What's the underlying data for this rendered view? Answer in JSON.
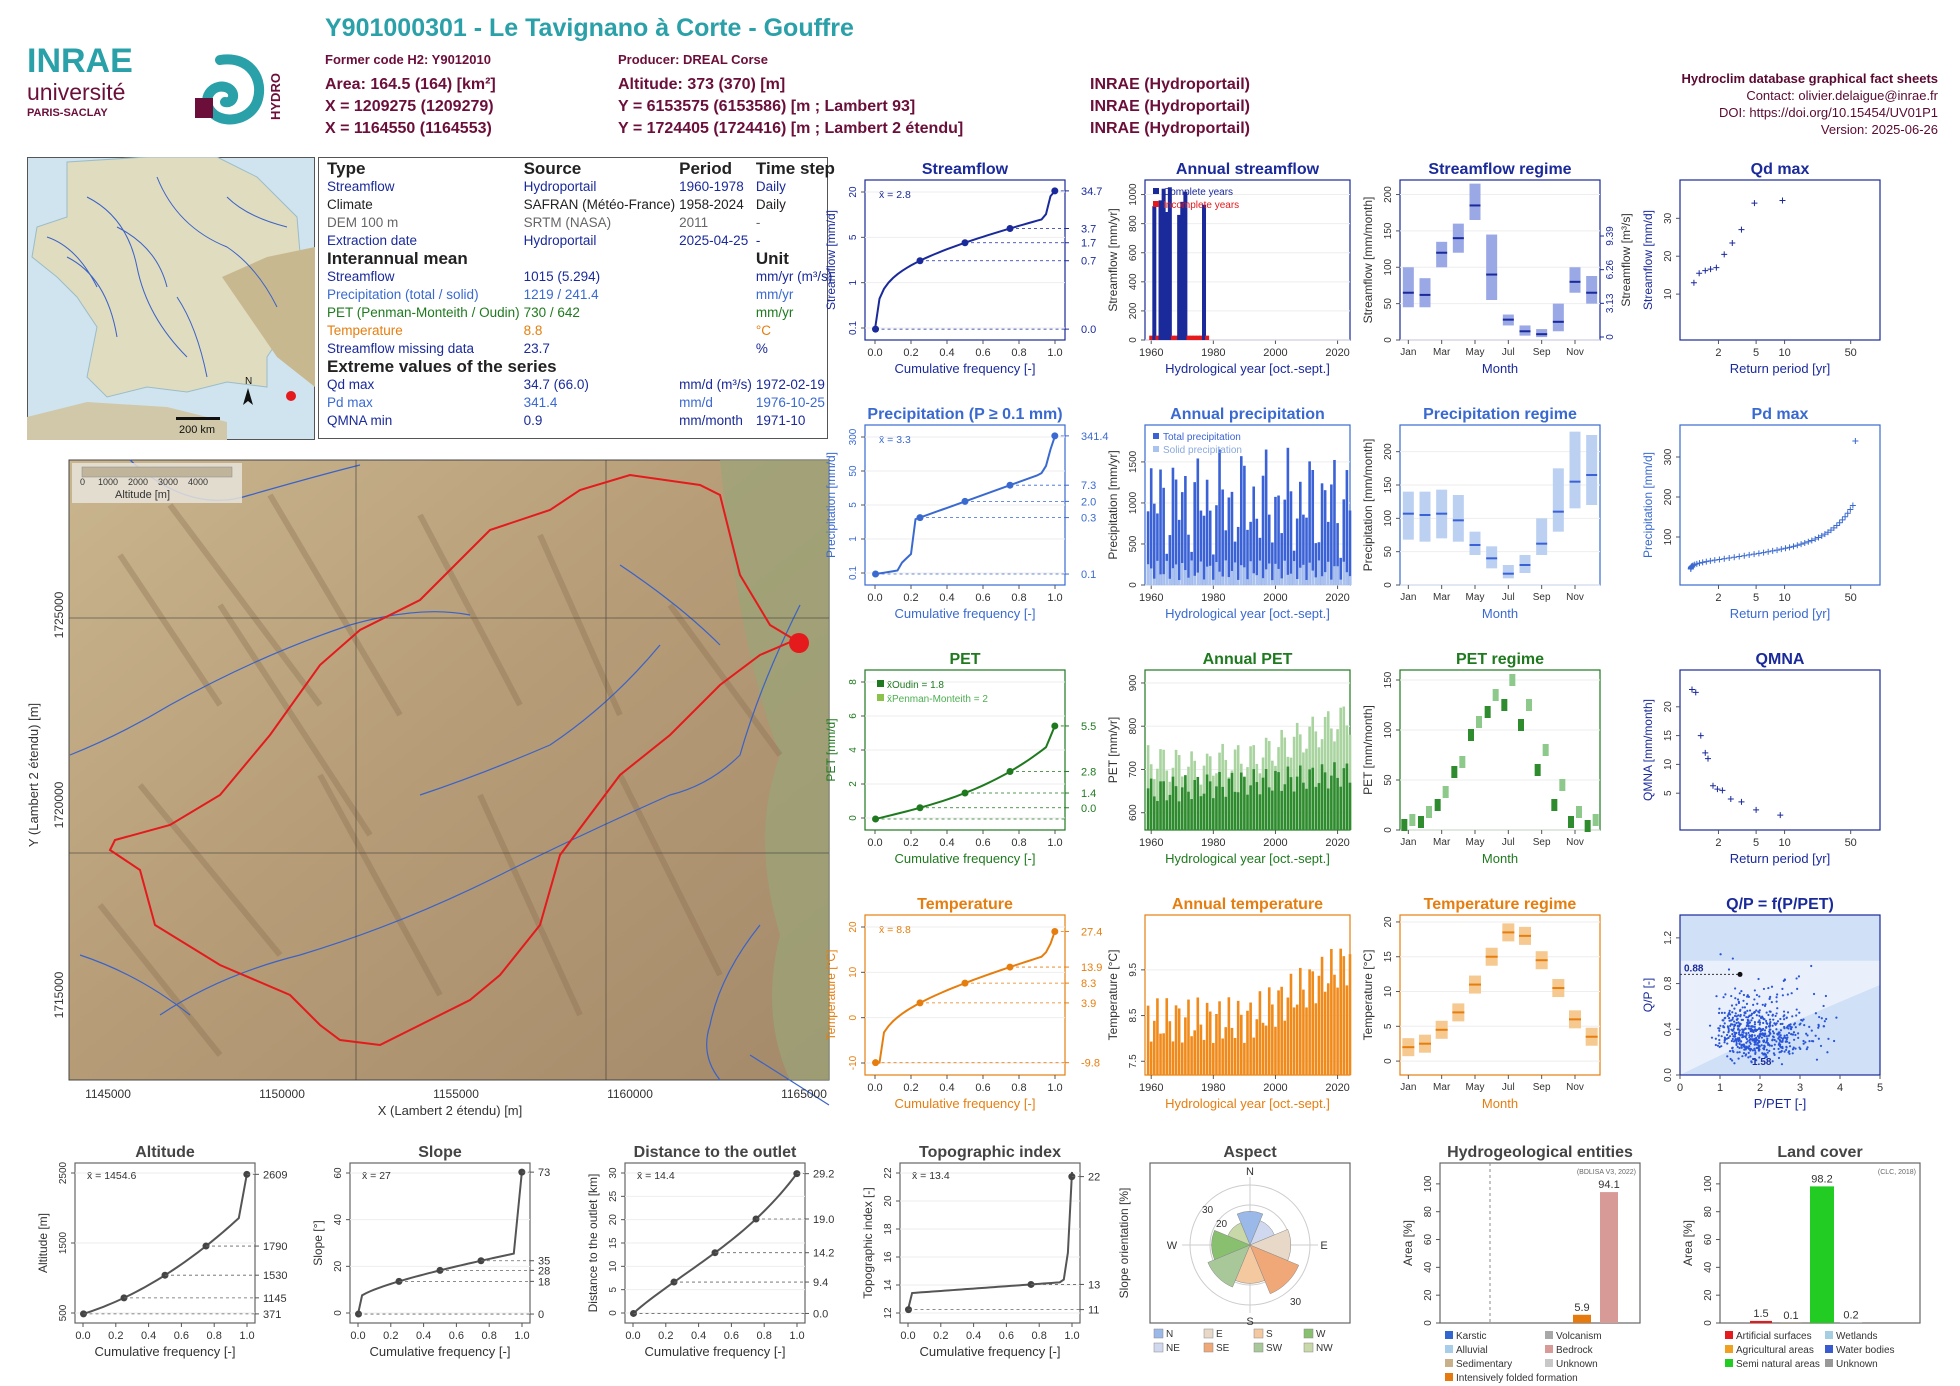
{
  "header": {
    "title": "Y901000301 - Le Tavignano à Corte - Gouffre",
    "former_code": "Former code H2: Y9012010",
    "producer": "Producer: DREAL Corse",
    "area": "Area: 164.5 (164) [km²]",
    "altitude": "Altitude: 373 (370) [m]",
    "x93": "X = 1209275 (1209279)",
    "y93": "Y = 6153575 (6153586) [m ; Lambert 93]",
    "x2e": "X = 1164550 (1164553)",
    "y2e": "Y = 1724405 (1724416) [m ; Lambert 2 étendu]",
    "src1": "INRAE (Hydroportail)",
    "src2": "INRAE (Hydroportail)",
    "src3": "INRAE (Hydroportail)",
    "db": "Hydroclim database graphical fact sheets",
    "contact": "Contact: olivier.delaigue@inrae.fr",
    "doi": "DOI: https://doi.org/10.15454/UV01P1",
    "version": "Version: 2025-06-26"
  },
  "logo": {
    "inrae": "INRAE",
    "univ": "université",
    "paris": "PARIS-SACLAY",
    "hydro": "HYDRO"
  },
  "info": {
    "h_type": "Type",
    "h_source": "Source",
    "h_period": "Period",
    "h_step": "Time step",
    "rows": [
      {
        "type": "Streamflow",
        "source": "Hydroportail",
        "period": "1960-1978",
        "step": "Daily",
        "color": "#1a2a9a"
      },
      {
        "type": "Climate",
        "source": "SAFRAN (Météo-France)",
        "period": "1958-2024",
        "step": "Daily",
        "color": "#222222"
      },
      {
        "type": "DEM 100 m",
        "source": "SRTM (NASA)",
        "period": "2011",
        "step": "-",
        "color": "#666666"
      },
      {
        "type": "Extraction date",
        "source": "Hydroportail",
        "period": "2025-04-25",
        "step": "-",
        "color": "#1a2a9a"
      }
    ],
    "h_mean": "Interannual mean",
    "h_unit": "Unit",
    "means": [
      {
        "label": "Streamflow",
        "value": "1015 (5.294)",
        "unit": "mm/yr (m³/s)",
        "color": "#1a2a9a"
      },
      {
        "label": "Precipitation (total / solid)",
        "value": "1219 / 241.4",
        "unit": "mm/yr",
        "color": "#3a6ad0"
      },
      {
        "label": "PET (Penman-Monteith / Oudin)",
        "value": "730 / 642",
        "unit": "mm/yr",
        "color": "#1f7a1f"
      },
      {
        "label": "Temperature",
        "value": "8.8",
        "unit": "°C",
        "color": "#e67e0f"
      },
      {
        "label": "Streamflow missing data",
        "value": "23.7",
        "unit": "%",
        "color": "#1a2a9a"
      }
    ],
    "h_ext": "Extreme values of the series",
    "extremes": [
      {
        "label": "Qd max",
        "value": "34.7 (66.0)",
        "unit": "mm/d (m³/s)",
        "date": "1972-02-19",
        "color": "#1a2a9a"
      },
      {
        "label": "Pd max",
        "value": "341.4",
        "unit": "mm/d",
        "date": "1976-10-25",
        "color": "#3a6ad0"
      },
      {
        "label": "QMNA min",
        "value": "0.9",
        "unit": "mm/month",
        "date": "1971-10",
        "color": "#1a2a9a"
      }
    ]
  },
  "minimap": {
    "scale": "200 km",
    "north": "N"
  },
  "map": {
    "legend_title": "Altitude [m]",
    "legend_ticks": [
      "0",
      "1000",
      "2000",
      "3000",
      "4000"
    ],
    "xlabel": "X (Lambert 2 étendu) [m]",
    "ylabel": "Y (Lambert 2 étendu) [m]",
    "xticks": [
      "1145000",
      "1150000",
      "1155000",
      "1160000",
      "1165000"
    ],
    "yticks": [
      "1715000",
      "1720000",
      "1725000"
    ]
  },
  "panel_titles": {
    "streamflow": "Streamflow",
    "annual_streamflow": "Annual streamflow",
    "streamflow_regime": "Streamflow regime",
    "qd_max": "Qd max",
    "precip": "Precipitation (P ≥ 0.1 mm)",
    "annual_precip": "Annual precipitation",
    "precip_regime": "Precipitation regime",
    "pd_max": "Pd max",
    "pet": "PET",
    "annual_pet": "Annual PET",
    "pet_regime": "PET regime",
    "qmna": "QMNA",
    "temp": "Temperature",
    "annual_temp": "Annual temperature",
    "temp_regime": "Temperature regime",
    "qp": "Q/P = f(P/PET)",
    "altitude": "Altitude",
    "slope": "Slope",
    "distance": "Distance to the outlet",
    "topo": "Topographic index",
    "aspect": "Aspect",
    "hydrogeo": "Hydrogeological entities",
    "landcover": "Land cover"
  },
  "axis_labels": {
    "cumfreq": "Cumulative frequency [-]",
    "hydro_year": "Hydrological year [oct.-sept.]",
    "month": "Month",
    "return_period": "Return period [yr]",
    "streamflow_mmd": "Streamflow [mm/d]",
    "streamflow_mmyr": "Streamflow [mm/yr]",
    "streamflow_mmmonth": "Streamflow [mm/month]",
    "streamflow_m3s": "Streamflow [m³/s]",
    "precip_mmd": "Precipitation [mm/d]",
    "precip_mmyr": "Precipitation [mm/yr]",
    "precip_mmmonth": "Precipitation [mm/month]",
    "pet_mmd": "PET [mm/d]",
    "pet_mmyr": "PET [mm/yr]",
    "pet_mmmonth": "PET [mm/month]",
    "qmna": "QMNA [mm/month]",
    "temp": "Temperature [°C]",
    "qp": "Q/P [-]",
    "ppet": "P/PET [-]",
    "altitude": "Altitude [m]",
    "slope": "Slope [°]",
    "distance": "Distance to the outlet [km]",
    "topo": "Topographic index [-]",
    "aspect": "Slope orientation [%]",
    "area": "Area [%]"
  },
  "months": [
    "Jan",
    "Mar",
    "May",
    "Jul",
    "Sep",
    "Nov"
  ],
  "chart_data": [
    {
      "id": "streamflow",
      "type": "line",
      "xlim": [
        0,
        1
      ],
      "ylog": true,
      "yticks": [
        "0.1",
        "1",
        "5",
        "20"
      ],
      "mean_label": "x̄ = 2.8",
      "right_labels": [
        "34.7",
        "3.7",
        "1.7",
        "0.7",
        "0.0"
      ],
      "color": "#1a2a9a"
    },
    {
      "id": "annual_streamflow",
      "type": "bar",
      "xlim": [
        1958,
        2024
      ],
      "ylim": [
        0,
        1100
      ],
      "yticks": [
        0,
        200,
        400,
        600,
        800,
        1000
      ],
      "xticks": [
        1960,
        1980,
        2000,
        2020
      ],
      "x": [
        1960,
        1961,
        1962,
        1963,
        1964,
        1965,
        1966,
        1967,
        1968,
        1969,
        1970,
        1971,
        1972,
        1973,
        1974,
        1975,
        1976,
        1977,
        1978
      ],
      "complete": [
        0,
        1,
        0,
        1,
        1,
        1,
        1,
        0,
        0,
        1,
        1,
        1,
        0,
        0,
        0,
        0,
        0,
        1,
        0
      ],
      "values": [
        30,
        920,
        30,
        960,
        1040,
        880,
        1050,
        30,
        30,
        860,
        950,
        1020,
        30,
        30,
        30,
        30,
        30,
        930,
        30
      ],
      "legend": [
        "Complete years",
        "Incomplete years"
      ]
    },
    {
      "id": "streamflow_regime",
      "type": "bar",
      "ylim": [
        0,
        220
      ],
      "yticks": [
        0,
        50,
        100,
        150,
        200
      ],
      "right_labels": [
        "0",
        "3.13",
        "6.26",
        "9.39"
      ],
      "median": [
        65,
        62,
        120,
        140,
        185,
        90,
        28,
        12,
        8,
        25,
        80,
        65
      ],
      "q_low": [
        45,
        45,
        100,
        120,
        165,
        55,
        20,
        6,
        4,
        12,
        65,
        50
      ],
      "q_high": [
        100,
        85,
        135,
        160,
        215,
        145,
        35,
        20,
        15,
        50,
        100,
        88
      ]
    },
    {
      "id": "qd_max",
      "type": "scatter",
      "xlog": true,
      "xticks": [
        2,
        5,
        10,
        50
      ],
      "yticks": [
        10,
        20,
        30
      ],
      "x": [
        1.1,
        1.25,
        1.45,
        1.65,
        1.9,
        2.3,
        2.8,
        3.5,
        4.8,
        9.5
      ],
      "y": [
        13,
        15.5,
        16.2,
        16.6,
        17,
        20.5,
        23.5,
        27,
        34,
        34.7
      ]
    },
    {
      "id": "precip",
      "type": "line",
      "xlim": [
        0,
        1
      ],
      "ylog": true,
      "yticks": [
        "0.1",
        "1",
        "5",
        "50",
        "300"
      ],
      "mean_label": "x̄ = 3.3",
      "right_labels": [
        "341.4",
        "7.3",
        "2.0",
        "0.3",
        "0.1"
      ],
      "color": "#3a6ad0"
    },
    {
      "id": "annual_precip",
      "type": "bar",
      "xlim": [
        1958,
        2024
      ],
      "ylim": [
        0,
        1950
      ],
      "yticks": [
        0,
        500,
        1000,
        1500
      ],
      "xticks": [
        1960,
        1980,
        2000,
        2020
      ],
      "legend": [
        "Total precipitation",
        "Solid precipitation"
      ]
    },
    {
      "id": "precip_regime",
      "type": "bar",
      "ylim": [
        0,
        240
      ],
      "yticks": [
        0,
        50,
        100,
        150,
        200
      ],
      "median": [
        107,
        105,
        107,
        97,
        60,
        40,
        17,
        30,
        62,
        110,
        155,
        165
      ],
      "q_low": [
        68,
        65,
        70,
        65,
        45,
        25,
        10,
        18,
        45,
        80,
        115,
        120
      ],
      "q_high": [
        140,
        140,
        143,
        135,
        80,
        58,
        30,
        45,
        100,
        175,
        230,
        225
      ]
    },
    {
      "id": "pd_max",
      "type": "scatter",
      "xlog": true,
      "xticks": [
        2,
        5,
        10,
        50
      ],
      "yticks": [
        100,
        200,
        300
      ]
    },
    {
      "id": "pet",
      "type": "line",
      "xlim": [
        0,
        1
      ],
      "yticks": [
        0,
        2,
        4,
        6,
        8
      ],
      "mean_label": [
        "x̄Oudin = 1.8",
        "x̄Penman-Monteith = 2"
      ],
      "right_labels": [
        "5.5",
        "2.8",
        "1.4",
        "0.0"
      ],
      "color": "#1f7a1f"
    },
    {
      "id": "annual_pet",
      "type": "bar",
      "xlim": [
        1958,
        2024
      ],
      "ylim": [
        560,
        930
      ],
      "yticks": [
        600,
        700,
        800,
        900
      ],
      "xticks": [
        1960,
        1980,
        2000,
        2020
      ]
    },
    {
      "id": "pet_regime",
      "type": "bar",
      "ylim": [
        0,
        160
      ],
      "yticks": [
        0,
        50,
        100,
        150
      ],
      "oudin": [
        5,
        8,
        25,
        58,
        95,
        118,
        125,
        105,
        60,
        25,
        8,
        4
      ],
      "pm": [
        10,
        18,
        38,
        68,
        108,
        135,
        150,
        125,
        80,
        45,
        18,
        10
      ]
    },
    {
      "id": "qmna",
      "type": "scatter",
      "xlog": true,
      "xticks": [
        2,
        5,
        10,
        50
      ],
      "yticks": [
        5,
        10,
        15,
        20
      ],
      "x": [
        1.05,
        1.15,
        1.3,
        1.45,
        1.55,
        1.75,
        1.95,
        2.2,
        2.7,
        3.5,
        5,
        9
      ],
      "y": [
        23,
        22.5,
        15,
        12,
        11,
        6.3,
        5.7,
        5.5,
        4,
        3.5,
        2.1,
        1.2
      ]
    },
    {
      "id": "temp",
      "type": "line",
      "xlim": [
        0,
        1
      ],
      "yticks": [
        -10,
        0,
        10,
        20
      ],
      "mean_label": "x̄ = 8.8",
      "right_labels": [
        "27.4",
        "13.9",
        "8.3",
        "3.9",
        "-9.8"
      ],
      "color": "#e67e0f"
    },
    {
      "id": "annual_temp",
      "type": "bar",
      "xlim": [
        1958,
        2024
      ],
      "ylim": [
        7.2,
        10.7
      ],
      "yticks": [
        7.5,
        8.5,
        9.5
      ],
      "xticks": [
        1960,
        1980,
        2000,
        2020
      ]
    },
    {
      "id": "temp_regime",
      "type": "bar",
      "ylim": [
        -2,
        21
      ],
      "yticks": [
        0,
        5,
        10,
        15,
        20
      ],
      "median": [
        2,
        2.5,
        4.5,
        7,
        11,
        15,
        18.5,
        18,
        14.5,
        10.5,
        6,
        3.5
      ]
    },
    {
      "id": "qp",
      "type": "scatter",
      "xlim": [
        0,
        5
      ],
      "ylim": [
        0,
        1.4
      ],
      "xticks": [
        0,
        1,
        2,
        3,
        4,
        5
      ],
      "yticks": [
        0.0,
        0.4,
        0.8,
        1.2
      ],
      "labels": [
        "0.88",
        "1.58"
      ]
    },
    {
      "id": "altitude",
      "type": "line",
      "xlim": [
        0,
        1
      ],
      "yticks": [
        500,
        1500,
        2500
      ],
      "mean_label": "x̄ = 1454.6",
      "right_labels": [
        "2609",
        "1790",
        "1530",
        "1145",
        "371"
      ]
    },
    {
      "id": "slope",
      "type": "line",
      "xlim": [
        0,
        1
      ],
      "yticks": [
        0,
        20,
        40,
        60
      ],
      "mean_label": "x̄ = 27",
      "right_labels": [
        "73",
        "35",
        "28",
        "18",
        "0"
      ]
    },
    {
      "id": "distance",
      "type": "line",
      "xlim": [
        0,
        1
      ],
      "yticks": [
        0,
        5,
        10,
        15,
        20,
        25,
        30
      ],
      "mean_label": "x̄ = 14.4",
      "right_labels": [
        "29.2",
        "19.0",
        "14.2",
        "9.4",
        "0.0"
      ]
    },
    {
      "id": "topo",
      "type": "line",
      "xlim": [
        0,
        1
      ],
      "yticks": [
        12,
        14,
        16,
        18,
        20,
        22
      ],
      "mean_label": "x̄ = 13.4",
      "right_labels": [
        "22",
        "13",
        "11"
      ]
    },
    {
      "id": "aspect",
      "type": "rose",
      "directions": [
        "N",
        "NE",
        "E",
        "SE",
        "S",
        "SW",
        "W",
        "NW"
      ],
      "rings": [
        "20",
        "30"
      ]
    },
    {
      "id": "hydrogeo",
      "type": "bar",
      "ylim": [
        0,
        100
      ],
      "yticks": [
        0,
        20,
        40,
        60,
        80,
        100
      ],
      "note": "(BDLISA V3, 2022)",
      "categories": [
        "Intensively folded formation",
        "Bedrock"
      ],
      "values": [
        5.9,
        94.1
      ],
      "legend": [
        "Karstic",
        "Volcanism",
        "Alluvial",
        "Bedrock",
        "Sedimentary",
        "Unknown",
        "Intensively folded formation"
      ],
      "legend_colors": [
        "#3066d0",
        "#a8a8a8",
        "#a8cde8",
        "#d89a96",
        "#c8b08a",
        "#c8c8c8",
        "#e47a10"
      ]
    },
    {
      "id": "landcover",
      "type": "bar",
      "ylim": [
        0,
        100
      ],
      "yticks": [
        0,
        20,
        40,
        60,
        80,
        100
      ],
      "note": "(CLC, 2018)",
      "categories": [
        "Artificial surfaces",
        "Agricultural areas",
        "Semi natural areas",
        "Wetlands",
        "Water bodies"
      ],
      "values": [
        1.5,
        0.1,
        98.2,
        0.2,
        0
      ],
      "legend": [
        "Artificial surfaces",
        "Wetlands",
        "Agricultural areas",
        "Water bodies",
        "Semi natural areas",
        "Unknown"
      ],
      "legend_colors": [
        "#e41a1c",
        "#a6cee3",
        "#f0a020",
        "#3a5ad0",
        "#22cc22",
        "#999999"
      ]
    }
  ]
}
